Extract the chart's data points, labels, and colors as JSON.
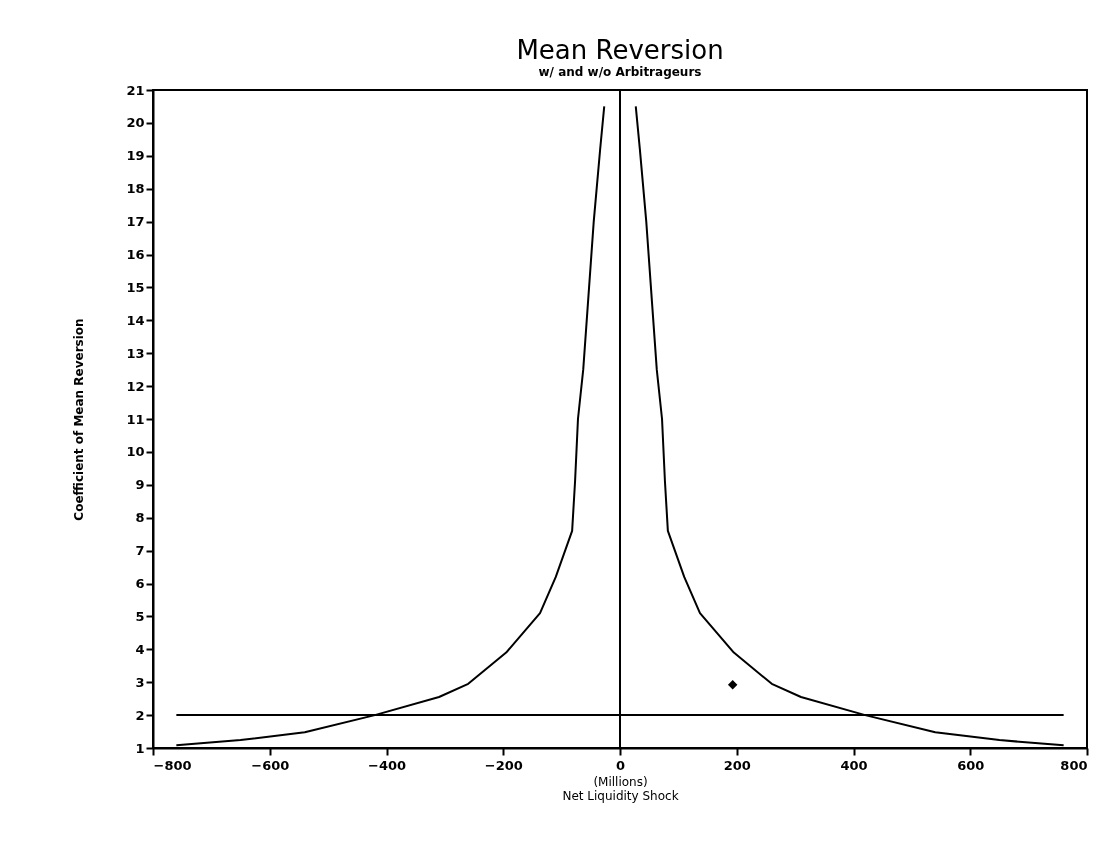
{
  "chart_data": {
    "type": "line",
    "title": "Mean Reversion",
    "subtitle": "w/ and w/o Arbitrageurs",
    "xlabel": "Net Liquidity Shock",
    "ylabel": "Coefficient of Mean Reversion",
    "annotations": [
      "(Millions)"
    ],
    "xlim": [
      -800,
      800
    ],
    "xticks": [
      -800,
      -600,
      -400,
      -200,
      0,
      200,
      400,
      600,
      800
    ],
    "ylim": [
      1,
      21
    ],
    "yticks": [
      1,
      2,
      3,
      4,
      5,
      6,
      7,
      8,
      9,
      10,
      11,
      12,
      13,
      14,
      15,
      16,
      17,
      18,
      19,
      20,
      21
    ],
    "grid": false,
    "marker": "none",
    "line_style": "solid",
    "series": [
      {
        "color": "#000000",
        "x": [
          -760,
          -650,
          -540,
          -420,
          -310,
          -260,
          -195,
          -137,
          -110,
          -82,
          -77,
          -72,
          -63,
          -55,
          -45,
          -34,
          -27
        ],
        "values": [
          1.08,
          1.24,
          1.48,
          2.0,
          2.55,
          2.95,
          3.9,
          5.1,
          6.2,
          7.6,
          9.1,
          11,
          12.5,
          14.5,
          17,
          19.2,
          20.5
        ]
      },
      {
        "color": "#000000",
        "x": [
          27,
          34,
          45,
          55,
          63,
          72,
          77,
          82,
          110,
          137,
          195,
          260,
          310,
          420,
          540,
          650,
          760
        ],
        "values": [
          20.5,
          19.2,
          17,
          14.5,
          12.5,
          11,
          9.1,
          7.6,
          6.2,
          5.1,
          3.9,
          2.95,
          2.55,
          2.0,
          1.48,
          1.24,
          1.08
        ]
      },
      {
        "color": "#000000",
        "x": [
          -760,
          760
        ],
        "values": [
          2,
          2
        ]
      },
      {
        "type": "scatter",
        "marker": "diamond",
        "color": "#000000",
        "x": [
          193
        ],
        "values": [
          2.92
        ]
      }
    ],
    "ref_lines": [
      {
        "axis": "x",
        "value": 0,
        "color": "#000000"
      }
    ]
  }
}
